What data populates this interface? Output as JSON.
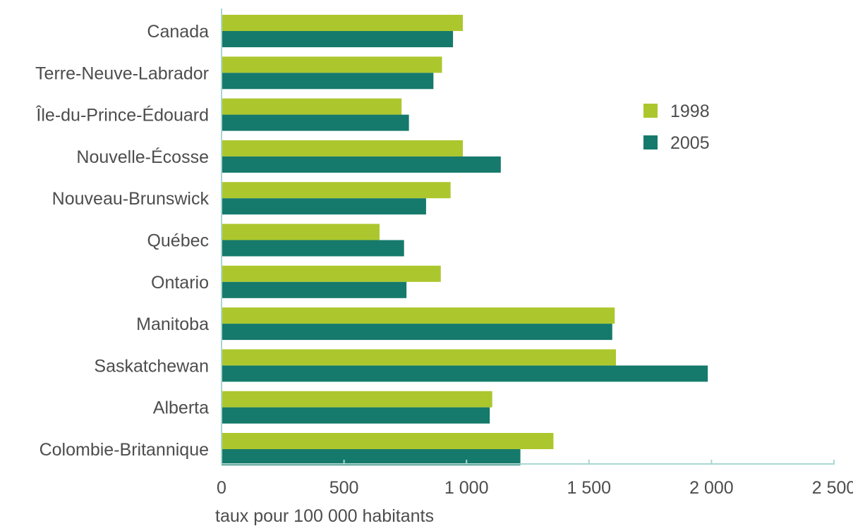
{
  "colors": {
    "series_1998": "#acc72d",
    "series_2005": "#157a6b",
    "axis": "#a9d6d1"
  },
  "chart_data": {
    "type": "bar",
    "orientation": "horizontal",
    "categories": [
      "Canada",
      "Terre-Neuve-Labrador",
      "Île-du-Prince-Édouard",
      "Nouvelle-Écosse",
      "Nouveau-Brunswick",
      "Québec",
      "Ontario",
      "Manitoba",
      "Saskatchewan",
      "Alberta",
      "Colombie-Britannique"
    ],
    "series": [
      {
        "name": "1998",
        "values": [
          985,
          900,
          735,
          985,
          935,
          645,
          895,
          1605,
          1610,
          1105,
          1355
        ]
      },
      {
        "name": "2005",
        "values": [
          945,
          865,
          765,
          1140,
          835,
          745,
          755,
          1595,
          1985,
          1095,
          1220
        ]
      }
    ],
    "title": "",
    "xlabel": "taux pour 100 000 habitants",
    "ylabel": "",
    "xlim": [
      0,
      2500
    ],
    "xticks": [
      0,
      500,
      1000,
      1500,
      2000,
      2500
    ],
    "xtick_labels": [
      "0",
      "500",
      "1 000",
      "1 500",
      "2 000",
      "2 500"
    ],
    "grid": false,
    "legend": {
      "position": "right",
      "entries": [
        "1998",
        "2005"
      ]
    }
  }
}
